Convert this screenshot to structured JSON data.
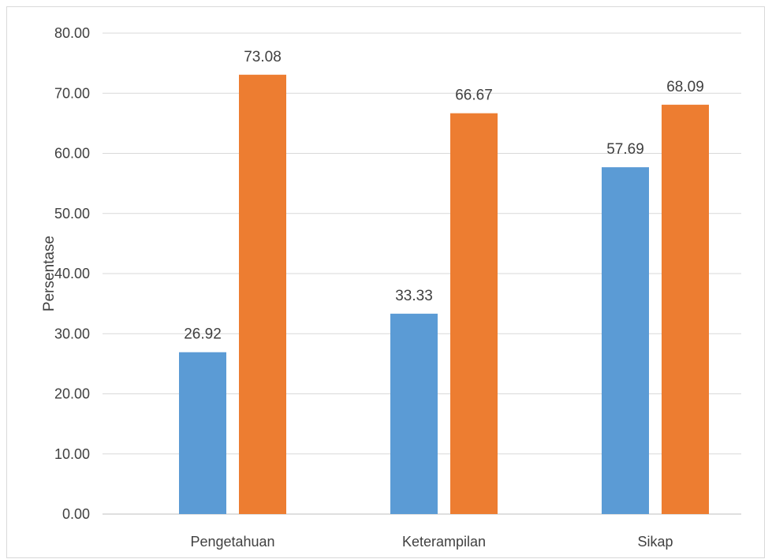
{
  "chart_data": {
    "type": "bar",
    "title": "",
    "xlabel": "",
    "ylabel": "Persentase",
    "categories": [
      "Pengetahuan",
      "Keterampilan",
      "Sikap"
    ],
    "series": [
      {
        "values": [
          26.92,
          33.33,
          57.69
        ],
        "color": "#5b9bd5"
      },
      {
        "values": [
          73.08,
          66.67,
          68.09
        ],
        "color": "#ed7d31"
      }
    ],
    "ylim": [
      0,
      80
    ],
    "yticks": [
      "0.00",
      "10.00",
      "20.00",
      "30.00",
      "40.00",
      "50.00",
      "60.00",
      "70.00",
      "80.00"
    ],
    "data_labels": [
      [
        "26.92",
        "33.33",
        "57.69"
      ],
      [
        "73.08",
        "66.67",
        "68.09"
      ]
    ],
    "grid": true,
    "legend": "none"
  }
}
